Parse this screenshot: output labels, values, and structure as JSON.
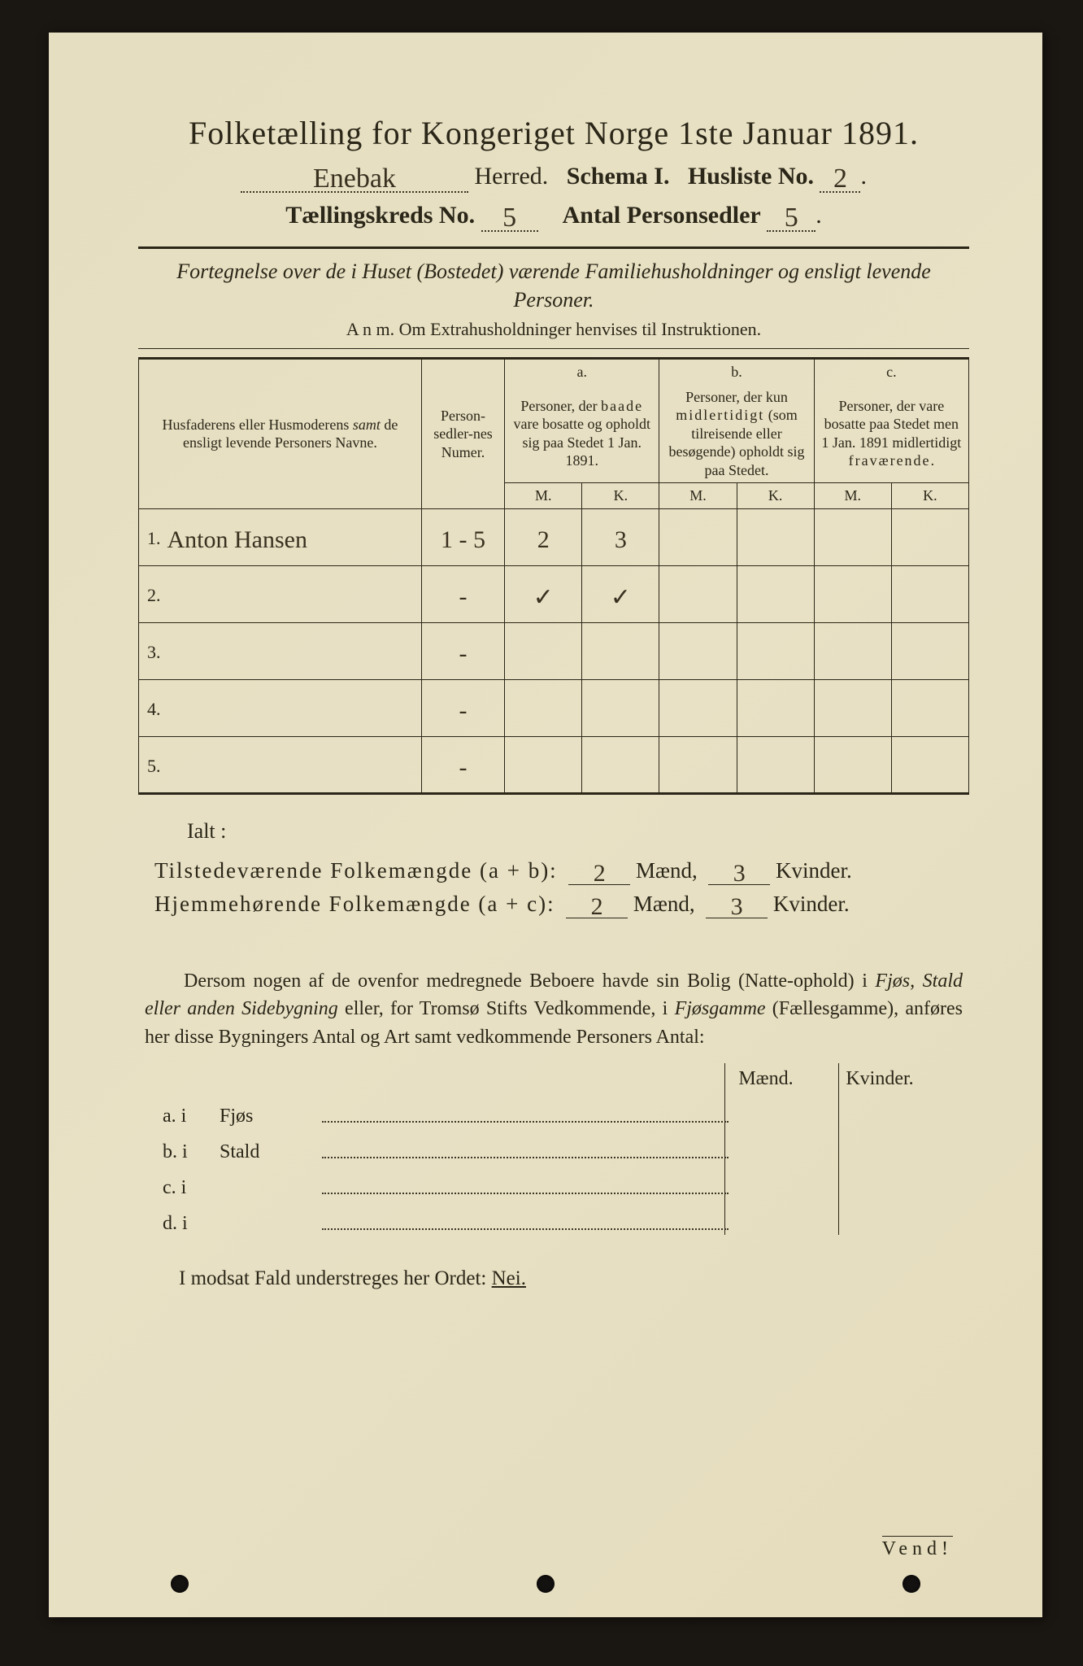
{
  "colors": {
    "background": "#1a1612",
    "paper": "#e8e0c4",
    "ink": "#2a2618",
    "handwriting": "#3a3020"
  },
  "title": "Folketælling for Kongeriget Norge 1ste Januar 1891.",
  "header": {
    "herred_value": "Enebak",
    "herred_label": "Herred.",
    "schema_label": "Schema I.",
    "husliste_label": "Husliste No.",
    "husliste_value": "2",
    "kreds_label": "Tællingskreds No.",
    "kreds_value": "5",
    "personsedler_label": "Antal Personsedler",
    "personsedler_value": "5"
  },
  "subtitle": "Fortegnelse over de i Huset (Bostedet) værende Familiehusholdninger og ensligt levende Personer.",
  "anm": "A n m.  Om Extrahusholdninger henvises til Instruktionen.",
  "table": {
    "head": {
      "name": "Husfaderens eller Husmoderens samt de ensligt levende Personers Navne.",
      "numer": "Person-sedler-nes Numer.",
      "a_label": "a.",
      "a_text": "Personer, der baade vare bosatte og opholdt sig paa Stedet 1 Jan. 1891.",
      "b_label": "b.",
      "b_text": "Personer, der kun midlertidigt (som tilreisende eller besøgende) opholdt sig paa Stedet.",
      "c_label": "c.",
      "c_text": "Personer, der vare bosatte paa Stedet men 1 Jan. 1891 midlertidigt fraværende.",
      "m": "M.",
      "k": "K."
    },
    "rows": [
      {
        "n": "1.",
        "name": "Anton Hansen",
        "num": "1 - 5",
        "a_m": "2",
        "a_k": "3",
        "b_m": "",
        "b_k": "",
        "c_m": "",
        "c_k": ""
      },
      {
        "n": "2.",
        "name": "",
        "num": "-",
        "a_m": "✓",
        "a_k": "✓",
        "b_m": "",
        "b_k": "",
        "c_m": "",
        "c_k": ""
      },
      {
        "n": "3.",
        "name": "",
        "num": "-",
        "a_m": "",
        "a_k": "",
        "b_m": "",
        "b_k": "",
        "c_m": "",
        "c_k": ""
      },
      {
        "n": "4.",
        "name": "",
        "num": "-",
        "a_m": "",
        "a_k": "",
        "b_m": "",
        "b_k": "",
        "c_m": "",
        "c_k": ""
      },
      {
        "n": "5.",
        "name": "",
        "num": "-",
        "a_m": "",
        "a_k": "",
        "b_m": "",
        "b_k": "",
        "c_m": "",
        "c_k": ""
      }
    ]
  },
  "ialt": "Ialt :",
  "totals": {
    "line1_label": "Tilstedeværende Folkemængde (a + b):",
    "line2_label": "Hjemmehørende Folkemængde (a + c):",
    "maend_label": "Mænd,",
    "kvinder_label": "Kvinder.",
    "ab_m": "2",
    "ab_k": "3",
    "ac_m": "2",
    "ac_k": "3"
  },
  "paragraph": "Dersom nogen af de ovenfor medregnede Beboere havde sin Bolig (Natte-ophold) i Fjøs, Stald eller anden Sidebygning eller, for Tromsø Stifts Vedkommende, i Fjøsgamme (Fællesgamme), anføres her disse Bygningers Antal og Art samt vedkommende Personers Antal:",
  "bygning": {
    "maend": "Mænd.",
    "kvinder": "Kvinder.",
    "rows": [
      {
        "label": "a.  i",
        "type": "Fjøs"
      },
      {
        "label": "b.  i",
        "type": "Stald"
      },
      {
        "label": "c.  i",
        "type": ""
      },
      {
        "label": "d.  i",
        "type": ""
      }
    ]
  },
  "modsat_pre": "I modsat Fald understreges her Ordet: ",
  "modsat_nei": "Nei.",
  "vend": "Vend!"
}
